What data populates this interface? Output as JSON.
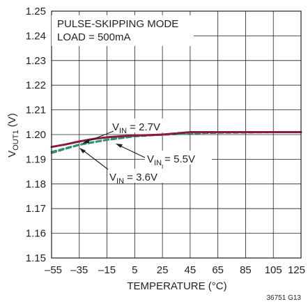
{
  "chart_data": {
    "type": "line",
    "xlabel": "TEMPERATURE (°C)",
    "ylabel_main": "V",
    "ylabel_sub": "OUT1",
    "ylabel_unit": " (V)",
    "xlim": [
      -55,
      125
    ],
    "ylim": [
      1.15,
      1.25
    ],
    "xticks": [
      -55,
      -35,
      -15,
      5,
      25,
      45,
      65,
      85,
      105,
      125
    ],
    "xtick_labels": [
      "–55",
      "–35",
      "–15",
      "5",
      "25",
      "45",
      "65",
      "85",
      "105",
      "125"
    ],
    "yticks": [
      1.15,
      1.16,
      1.17,
      1.18,
      1.19,
      1.2,
      1.21,
      1.22,
      1.23,
      1.24,
      1.25
    ],
    "ytick_labels": [
      "1.15",
      "1.16",
      "1.17",
      "1.18",
      "1.19",
      "1.20",
      "1.21",
      "1.22",
      "1.23",
      "1.24",
      "1.25"
    ],
    "grid": true,
    "mode_label": "PULSE-SKIPPING MODE",
    "load_label": "LOAD = 500mA",
    "figure_id": "36751 G13",
    "series": [
      {
        "label_main": "V",
        "label_sub": "IN",
        "label_value": " = 2.7V",
        "color": "#8b1a3c",
        "dash": false,
        "x": [
          -55,
          -45,
          -35,
          -25,
          -15,
          -5,
          5,
          15,
          25,
          35,
          45,
          55,
          65,
          85,
          105,
          125
        ],
        "y": [
          1.195,
          1.196,
          1.1972,
          1.1982,
          1.1989,
          1.1993,
          1.1996,
          1.1998,
          1.2,
          1.2005,
          1.201,
          1.201,
          1.201,
          1.201,
          1.201,
          1.201
        ]
      },
      {
        "label_main": "V",
        "label_sub": "IN",
        "label_value": " = 3.6V",
        "color": "#1f9a8a",
        "dash": true,
        "x": [
          -55,
          -45,
          -35,
          -25,
          -15,
          -5,
          5,
          15,
          25,
          35,
          45,
          55,
          65,
          85,
          105,
          125
        ],
        "y": [
          1.193,
          1.1945,
          1.196,
          1.197,
          1.198,
          1.1987,
          1.1993,
          1.1997,
          1.2,
          1.2002,
          1.2005,
          1.2007,
          1.2008,
          1.2009,
          1.201,
          1.201
        ]
      },
      {
        "label_main": "V",
        "label_sub": "IN",
        "label_value": " = 5.5V",
        "color": "#4a7a3a",
        "dash": true,
        "x": [
          -55,
          -45,
          -35,
          -25,
          -15,
          -5,
          5,
          15,
          25,
          35,
          45,
          55,
          65,
          85,
          105,
          125
        ],
        "y": [
          1.1925,
          1.1942,
          1.1958,
          1.1968,
          1.1978,
          1.1985,
          1.1992,
          1.1996,
          1.1999,
          1.2001,
          1.2004,
          1.2006,
          1.2007,
          1.2008,
          1.2009,
          1.201
        ]
      }
    ]
  }
}
